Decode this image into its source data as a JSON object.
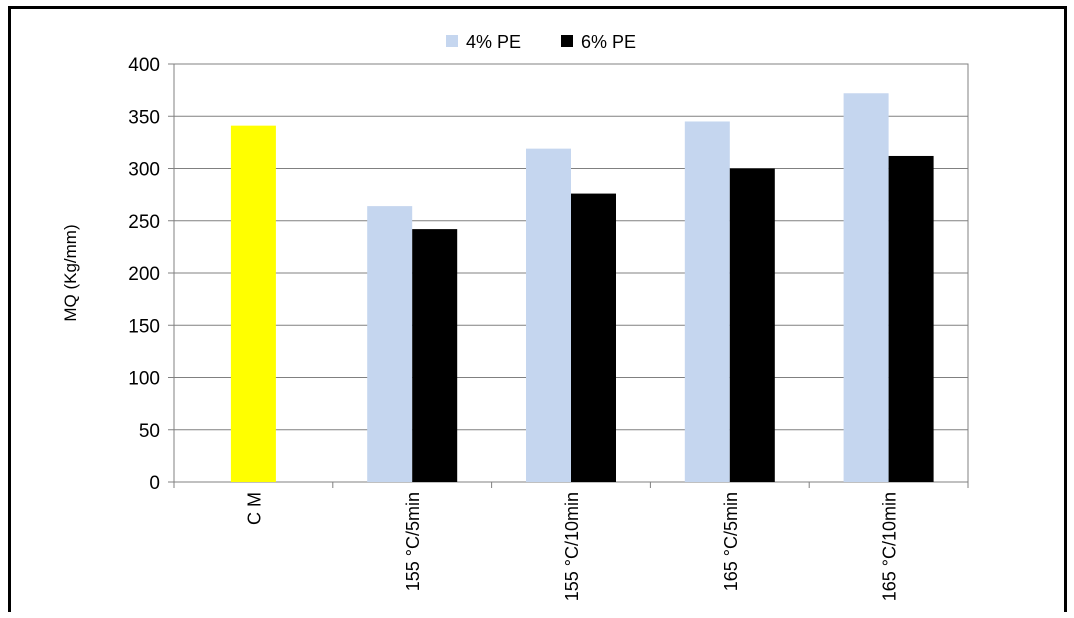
{
  "chart_data": {
    "type": "bar",
    "title": "",
    "xlabel": "",
    "ylabel": "MQ (Kg/mm)",
    "ylim": [
      0,
      400
    ],
    "yticks": [
      0,
      50,
      100,
      150,
      200,
      250,
      300,
      350,
      400
    ],
    "grid": true,
    "legend_position": "top",
    "categories": [
      "C M",
      "155 °C/5min",
      "155 °C/10min",
      "165 °C/5min",
      "165 °C/10min"
    ],
    "series": [
      {
        "name": "4% PE",
        "color": "#c5d6ef",
        "values": [
          null,
          264,
          319,
          345,
          372
        ]
      },
      {
        "name": "6% PE",
        "color": "#000000",
        "values": [
          null,
          242,
          276,
          300,
          312
        ]
      }
    ],
    "control": {
      "category": "C M",
      "value": 341,
      "color": "#ffff00"
    }
  }
}
